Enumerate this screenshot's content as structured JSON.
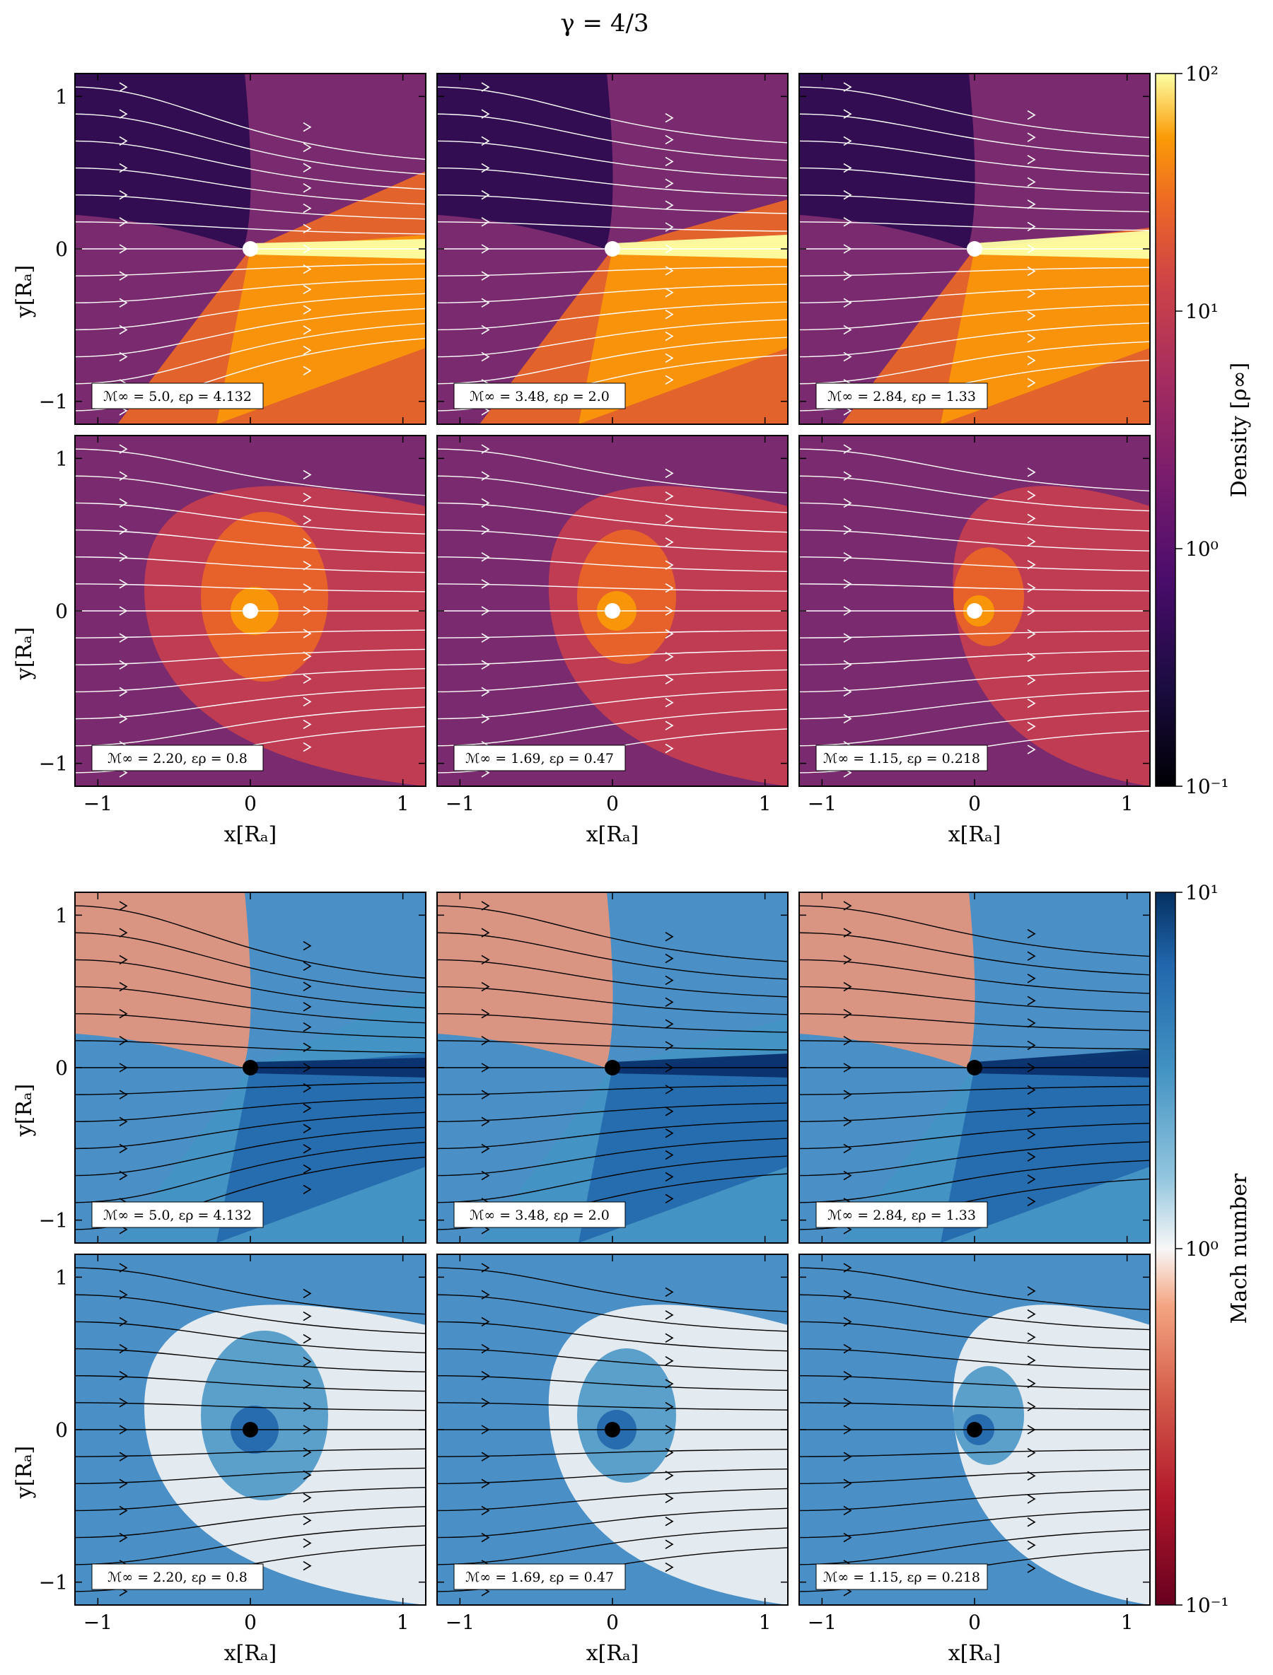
{
  "figure": {
    "title": "γ = 4/3"
  },
  "chart_data": [
    {
      "type": "heatmap",
      "quantity": "density",
      "colormap": "inferno",
      "colorbar": {
        "label": "Density [ρ∞]",
        "scale": "log",
        "range": [
          0.1,
          100
        ],
        "ticks": [
          "10⁻¹",
          "10⁰",
          "10¹",
          "10²"
        ]
      },
      "xlabel": "x[Rₐ]",
      "ylabel": "y[Rₐ]",
      "xlim": [
        -1.15,
        1.15
      ],
      "ylim": [
        -1.15,
        1.15
      ],
      "xticks": [
        "−1",
        "0",
        "1"
      ],
      "yticks": [
        "1",
        "0",
        "−1"
      ],
      "streamline_color": "#ffffff",
      "accretor_color": "#ffffff",
      "panels": [
        {
          "label": "ℳ∞ = 5.0, ερ = 4.132",
          "mach": 5.0,
          "eps": 4.132
        },
        {
          "label": "ℳ∞ = 3.48, ερ = 2.0",
          "mach": 3.48,
          "eps": 2.0
        },
        {
          "label": "ℳ∞ = 2.84, ερ = 1.33",
          "mach": 2.84,
          "eps": 1.33
        },
        {
          "label": "ℳ∞ = 2.20, ερ = 0.8",
          "mach": 2.2,
          "eps": 0.8
        },
        {
          "label": "ℳ∞ = 1.69, ερ = 0.47",
          "mach": 1.69,
          "eps": 0.47
        },
        {
          "label": "ℳ∞ = 1.15, ερ = 0.218",
          "mach": 1.15,
          "eps": 0.218
        }
      ]
    },
    {
      "type": "heatmap",
      "quantity": "mach",
      "colormap": "RdBu",
      "colorbar": {
        "label": "Mach number",
        "scale": "log",
        "range": [
          0.1,
          10
        ],
        "ticks": [
          "10⁻¹",
          "10⁰",
          "10¹"
        ]
      },
      "xlabel": "x[Rₐ]",
      "ylabel": "y[Rₐ]",
      "xlim": [
        -1.15,
        1.15
      ],
      "ylim": [
        -1.15,
        1.15
      ],
      "xticks": [
        "−1",
        "0",
        "1"
      ],
      "yticks": [
        "1",
        "0",
        "−1"
      ],
      "streamline_color": "#000000",
      "accretor_color": "#000000",
      "panels": [
        {
          "label": "ℳ∞ = 5.0, ερ = 4.132",
          "mach": 5.0,
          "eps": 4.132
        },
        {
          "label": "ℳ∞ = 3.48, ερ = 2.0",
          "mach": 3.48,
          "eps": 2.0
        },
        {
          "label": "ℳ∞ = 2.84, ερ = 1.33",
          "mach": 2.84,
          "eps": 1.33
        },
        {
          "label": "ℳ∞ = 2.20, ερ = 0.8",
          "mach": 2.2,
          "eps": 0.8
        },
        {
          "label": "ℳ∞ = 1.69, ερ = 0.47",
          "mach": 1.69,
          "eps": 0.47
        },
        {
          "label": "ℳ∞ = 1.15, ερ = 0.218",
          "mach": 1.15,
          "eps": 0.218
        }
      ]
    }
  ]
}
